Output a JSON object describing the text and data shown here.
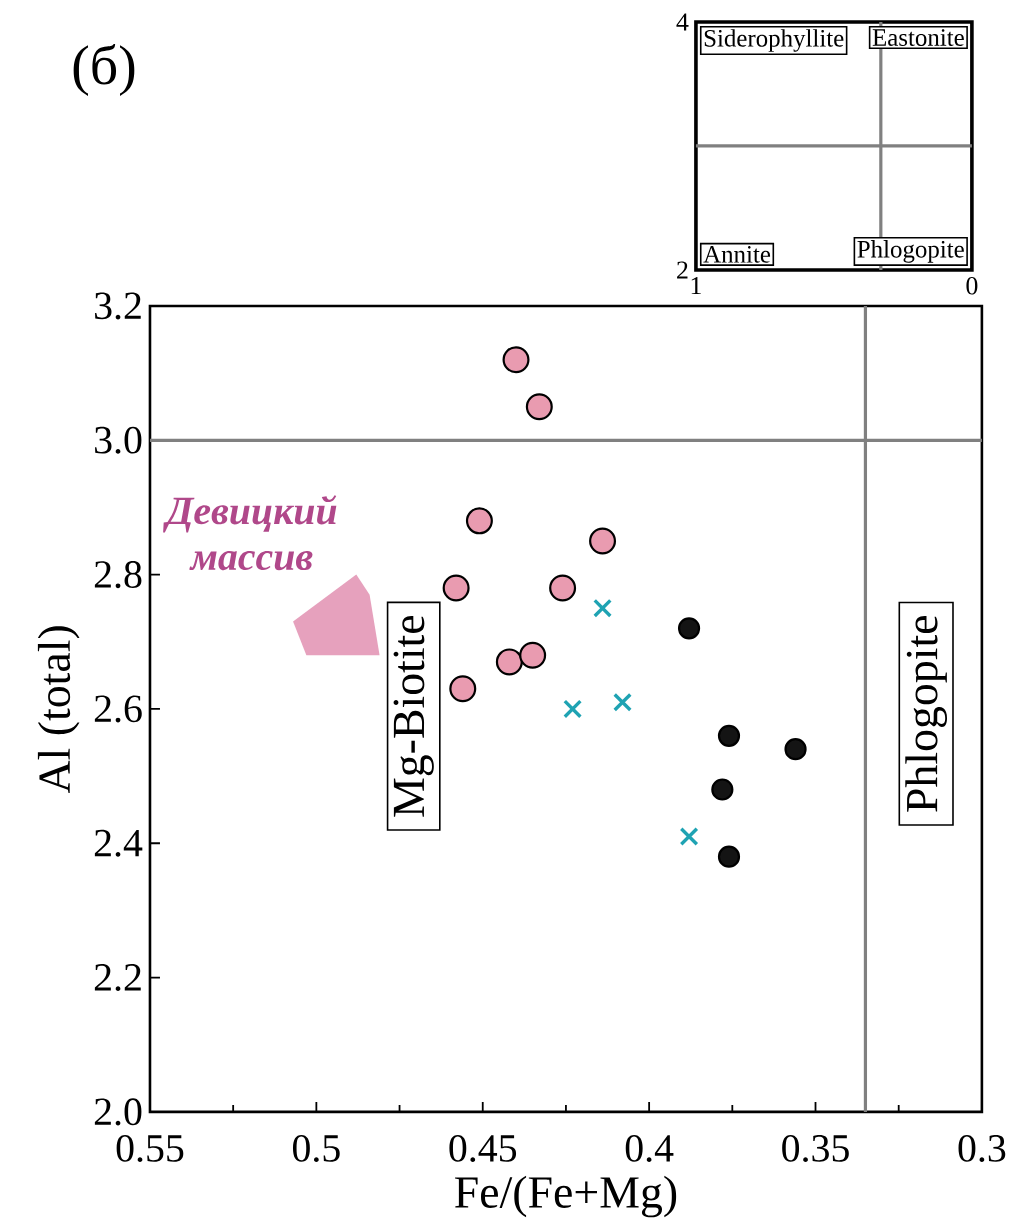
{
  "chart_data": [
    {
      "type": "scatter",
      "title": "(б)",
      "xlabel": "Fe/(Fe+Mg)",
      "ylabel": "Al (total)",
      "xlim": [
        0.55,
        0.3
      ],
      "ylim": [
        2,
        3.2
      ],
      "xticks": [
        0.55,
        {
          "value": 0.525,
          "label": null
        },
        0.5,
        {
          "value": 0.475,
          "label": null
        },
        0.45,
        {
          "value": 0.425,
          "label": null
        },
        0.4,
        {
          "value": 0.375,
          "label": null
        },
        0.35,
        {
          "value": 0.325,
          "label": null
        },
        0.3
      ],
      "yticks": [
        {
          "value": 2,
          "label": "2.0"
        },
        2.2,
        2.4,
        2.6,
        2.8,
        {
          "value": 3,
          "label": "3.0"
        },
        3.2
      ],
      "series": [
        {
          "type": "scatter",
          "marker": "circle",
          "color": "#e99bb0",
          "x": [
            0.44,
            0.433,
            0.451,
            0.414,
            0.458,
            0.426,
            0.442,
            0.435,
            0.456
          ],
          "values": [
            3.12,
            3.05,
            2.88,
            2.85,
            2.78,
            2.78,
            2.67,
            2.68,
            2.63
          ]
        },
        {
          "type": "scatter",
          "marker": "cross",
          "color": "#1fa3b3",
          "x": [
            0.414,
            0.423,
            0.408,
            0.388
          ],
          "values": [
            2.75,
            2.6,
            2.61,
            2.41
          ]
        },
        {
          "type": "scatter",
          "marker": "circle",
          "color": "#141414",
          "x": [
            0.388,
            0.376,
            0.356,
            0.378,
            0.376
          ],
          "values": [
            2.72,
            2.56,
            2.54,
            2.48,
            2.38
          ]
        },
        {
          "type": "area",
          "name": "Девицкий массив",
          "color": "#e6a1bd",
          "x": [
            0.488,
            0.484,
            0.481,
            0.503,
            0.507
          ],
          "values": [
            2.8,
            2.77,
            2.68,
            2.68,
            2.73
          ]
        }
      ],
      "ref_lines": [
        {
          "axis": "y",
          "value": 3,
          "color": "#808080"
        },
        {
          "axis": "x",
          "value": 0.335,
          "color": "#808080"
        }
      ],
      "annotations": [
        "Mg-Biotite",
        "Phlogopite"
      ]
    },
    {
      "type": "scatter",
      "xlim": [
        1,
        0
      ],
      "ylim": [
        2,
        4
      ],
      "xticks": [
        1,
        0
      ],
      "yticks": [
        2,
        4
      ],
      "ref_lines": [
        {
          "axis": "x",
          "value": 0.33,
          "color": "#808080"
        },
        {
          "axis": "y",
          "value": 3,
          "color": "#808080"
        }
      ],
      "annotations": [
        "Siderophyllite",
        "Eastonite",
        "Annite",
        "Phlogopite"
      ]
    }
  ]
}
